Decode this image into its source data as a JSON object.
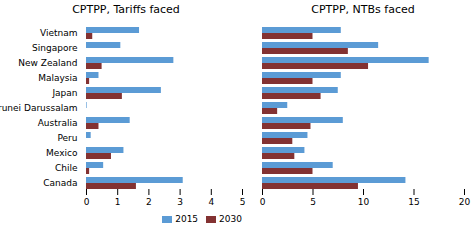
{
  "chart_data": [
    {
      "type": "bar",
      "orientation": "horizontal",
      "title": "CPTPP, Tariffs faced",
      "categories": [
        "Vietnam",
        "Singapore",
        "New Zealand",
        "Malaysia",
        "Japan",
        "Brunei Darussalam",
        "Australia",
        "Peru",
        "Mexico",
        "Chile",
        "Canada"
      ],
      "series": [
        {
          "name": "2015",
          "color": "#5B9BD5",
          "values": [
            1.7,
            1.1,
            2.8,
            0.4,
            2.4,
            0.02,
            1.4,
            0.15,
            1.2,
            0.55,
            3.1
          ]
        },
        {
          "name": "2030",
          "color": "#833232",
          "values": [
            0.2,
            0.0,
            0.5,
            0.1,
            1.15,
            0.0,
            0.4,
            0.0,
            0.8,
            0.1,
            1.6
          ]
        }
      ],
      "xlim": [
        0,
        5
      ],
      "xticks": [
        0,
        1,
        2,
        3,
        4,
        5
      ],
      "legend": "lower right"
    },
    {
      "type": "bar",
      "orientation": "horizontal",
      "title": "CPTPP, NTBs faced",
      "categories": [
        "Vietnam",
        "Singapore",
        "New Zealand",
        "Malaysia",
        "Japan",
        "Brunei Darussalam",
        "Australia",
        "Peru",
        "Mexico",
        "Chile",
        "Canada"
      ],
      "series": [
        {
          "name": "2015",
          "color": "#5B9BD5",
          "values": [
            7.8,
            11.5,
            16.5,
            7.8,
            7.5,
            2.5,
            8.0,
            4.5,
            4.2,
            7.0,
            14.2
          ]
        },
        {
          "name": "2030",
          "color": "#833232",
          "values": [
            5.0,
            8.5,
            10.5,
            5.0,
            5.8,
            1.5,
            4.8,
            3.0,
            3.2,
            5.0,
            9.5
          ]
        }
      ],
      "xlim": [
        0,
        20
      ],
      "xticks": [
        0,
        5,
        10,
        15,
        20
      ],
      "tick_labels": "x"
    }
  ]
}
